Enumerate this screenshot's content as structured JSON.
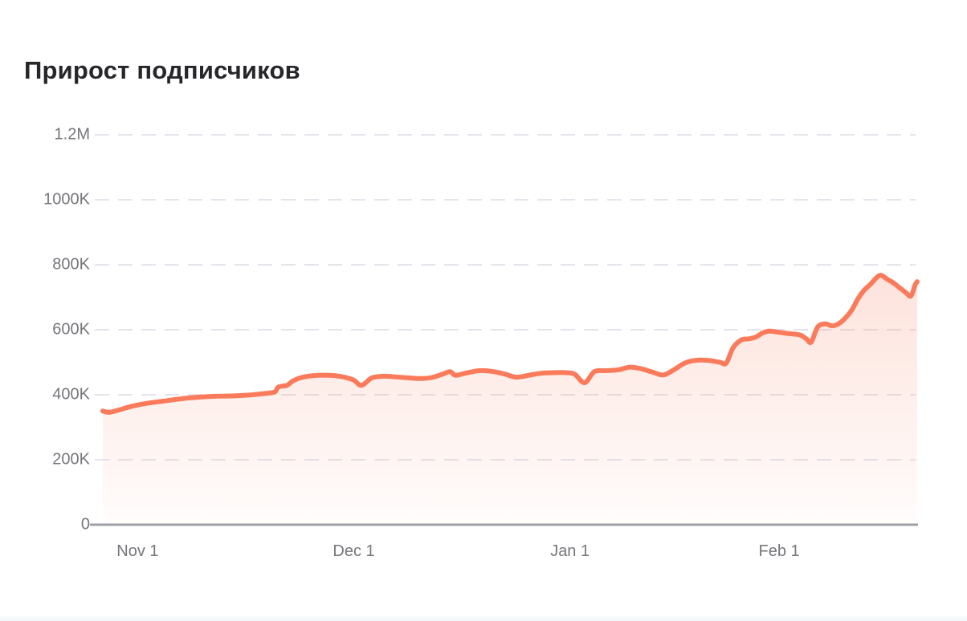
{
  "title": "Прирост подписчиков",
  "colors": {
    "line": "#FA7B5C",
    "area_top": "rgba(250,123,92,0.33)",
    "area_bottom": "rgba(250,123,92,0.02)",
    "grid": "#E4E4EC",
    "axis": "#9EA0A5",
    "tick_text": "#76767C",
    "title_text": "#27272B"
  },
  "chart_data": {
    "type": "area",
    "title": "Прирост подписчиков",
    "xlabel": "",
    "ylabel": "",
    "values_unit": "thousands of subscribers",
    "ylim": [
      0,
      1200
    ],
    "grid": "dashed horizontal",
    "legend": "none",
    "x_ticks": [
      {
        "label": "Nov 1",
        "day": 5
      },
      {
        "label": "Dec 1",
        "day": 36
      },
      {
        "label": "Jan 1",
        "day": 67
      },
      {
        "label": "Feb 1",
        "day": 97
      }
    ],
    "y_ticks": [
      {
        "label": "0",
        "value": 0
      },
      {
        "label": "200K",
        "value": 200
      },
      {
        "label": "400K",
        "value": 400
      },
      {
        "label": "600K",
        "value": 600
      },
      {
        "label": "800K",
        "value": 800
      },
      {
        "label": "1000K",
        "value": 1000
      },
      {
        "label": "1.2M",
        "value": 1200
      }
    ],
    "x_range_days": [
      0,
      116.8
    ],
    "points": [
      [
        0.0,
        350
      ],
      [
        0.9,
        346
      ],
      [
        2.3,
        353
      ],
      [
        3.7,
        362
      ],
      [
        5.4,
        370
      ],
      [
        7.1,
        376
      ],
      [
        8.9,
        381
      ],
      [
        10.6,
        386
      ],
      [
        12.3,
        390
      ],
      [
        14.1,
        393
      ],
      [
        15.8,
        395
      ],
      [
        17.5,
        396
      ],
      [
        19.2,
        397
      ],
      [
        21.0,
        399
      ],
      [
        22.4,
        402
      ],
      [
        23.7,
        405
      ],
      [
        24.7,
        409
      ],
      [
        25.2,
        424
      ],
      [
        26.4,
        429
      ],
      [
        27.3,
        443
      ],
      [
        28.5,
        453
      ],
      [
        30.2,
        459
      ],
      [
        32.5,
        460
      ],
      [
        34.2,
        456
      ],
      [
        35.9,
        446
      ],
      [
        37.1,
        429
      ],
      [
        38.6,
        452
      ],
      [
        40.3,
        457
      ],
      [
        42.0,
        455
      ],
      [
        43.8,
        452
      ],
      [
        45.5,
        450
      ],
      [
        47.2,
        453
      ],
      [
        48.8,
        464
      ],
      [
        49.8,
        471
      ],
      [
        50.6,
        460
      ],
      [
        52.1,
        467
      ],
      [
        54.0,
        474
      ],
      [
        55.8,
        472
      ],
      [
        57.6,
        464
      ],
      [
        59.3,
        454
      ],
      [
        61.1,
        460
      ],
      [
        62.8,
        466
      ],
      [
        64.7,
        468
      ],
      [
        66.5,
        468
      ],
      [
        67.7,
        463
      ],
      [
        69.1,
        437
      ],
      [
        70.5,
        471
      ],
      [
        72.2,
        474
      ],
      [
        74.0,
        477
      ],
      [
        75.6,
        485
      ],
      [
        77.2,
        480
      ],
      [
        78.8,
        470
      ],
      [
        80.4,
        461
      ],
      [
        82.0,
        478
      ],
      [
        83.4,
        497
      ],
      [
        85.0,
        506
      ],
      [
        86.8,
        506
      ],
      [
        88.5,
        500
      ],
      [
        89.4,
        497
      ],
      [
        90.4,
        545
      ],
      [
        91.6,
        569
      ],
      [
        92.7,
        572
      ],
      [
        93.7,
        578
      ],
      [
        94.6,
        590
      ],
      [
        95.6,
        596
      ],
      [
        97.0,
        592
      ],
      [
        98.5,
        588
      ],
      [
        100.0,
        584
      ],
      [
        100.9,
        572
      ],
      [
        101.6,
        562
      ],
      [
        102.5,
        608
      ],
      [
        103.6,
        618
      ],
      [
        104.6,
        612
      ],
      [
        105.5,
        618
      ],
      [
        106.4,
        634
      ],
      [
        107.4,
        660
      ],
      [
        108.3,
        695
      ],
      [
        109.2,
        722
      ],
      [
        110.1,
        740
      ],
      [
        110.9,
        759
      ],
      [
        111.6,
        768
      ],
      [
        112.4,
        757
      ],
      [
        113.4,
        744
      ],
      [
        114.3,
        729
      ],
      [
        115.2,
        714
      ],
      [
        115.9,
        704
      ],
      [
        116.5,
        738
      ],
      [
        116.8,
        748
      ]
    ]
  }
}
